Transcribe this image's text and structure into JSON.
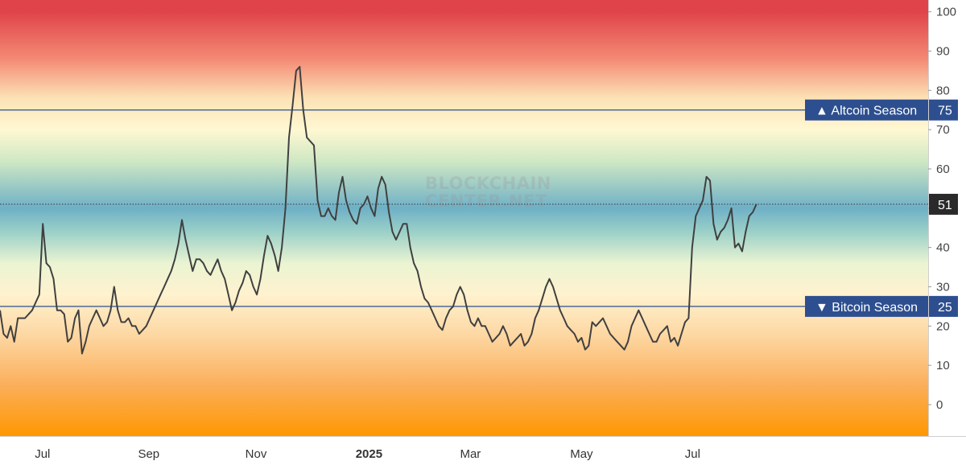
{
  "chart_data": {
    "type": "line",
    "series": [
      {
        "values": [
          24,
          18,
          17,
          20,
          16,
          22,
          22,
          22,
          23,
          24,
          26,
          28,
          46,
          36,
          35,
          32,
          24,
          24,
          23,
          16,
          17,
          22,
          24,
          13,
          16,
          20,
          22,
          24,
          22,
          20,
          21,
          24,
          30,
          24,
          21,
          21,
          22,
          20,
          20,
          18,
          19,
          20,
          22,
          24,
          26,
          28,
          30,
          32,
          34,
          37,
          41,
          47,
          42,
          38,
          34,
          37,
          37,
          36,
          34,
          33,
          35,
          37,
          34,
          32,
          28,
          24,
          26,
          29,
          31,
          34,
          33,
          30,
          28,
          32,
          38,
          43,
          41,
          38,
          34,
          40,
          50,
          68,
          76,
          85,
          86,
          75,
          68,
          67,
          66,
          52,
          48,
          48,
          50,
          48,
          47,
          54,
          58,
          52,
          49,
          47,
          46,
          50,
          51,
          53,
          50,
          48,
          55,
          58,
          56,
          49,
          44,
          42,
          44,
          46,
          46,
          40,
          36,
          34,
          30,
          27,
          26,
          24,
          22,
          20,
          19,
          22,
          24,
          25,
          28,
          30,
          28,
          24,
          21,
          20,
          22,
          20,
          20,
          18,
          16,
          17,
          18,
          20,
          18,
          15,
          16,
          17,
          18,
          15,
          16,
          18,
          22,
          24,
          27,
          30,
          32,
          30,
          27,
          24,
          22,
          20,
          19,
          18,
          16,
          17,
          14,
          15,
          21,
          20,
          21,
          22,
          20,
          18,
          17,
          16,
          15,
          14,
          16,
          20,
          22,
          24,
          22,
          20,
          18,
          16,
          16,
          18,
          19,
          20,
          16,
          17,
          15,
          18,
          21,
          22,
          40,
          48,
          50,
          52,
          58,
          57,
          46,
          42,
          44,
          45,
          47,
          50,
          40,
          41,
          39,
          44,
          48,
          49,
          51
        ],
        "color": "#404040"
      }
    ],
    "x_axis": {
      "ticks": [
        {
          "label": "Jul",
          "x": 0.044,
          "bold": false
        },
        {
          "label": "Sep",
          "x": 0.154,
          "bold": false
        },
        {
          "label": "Nov",
          "x": 0.265,
          "bold": false
        },
        {
          "label": "2025",
          "x": 0.382,
          "bold": true
        },
        {
          "label": "Mar",
          "x": 0.487,
          "bold": false
        },
        {
          "label": "May",
          "x": 0.602,
          "bold": false
        },
        {
          "label": "Jul",
          "x": 0.717,
          "bold": false
        }
      ],
      "data_end": 0.783
    },
    "y_axis": {
      "range": [
        -8,
        103
      ],
      "ticks": [
        "0",
        "10",
        "20",
        "30",
        "40",
        "50",
        "60",
        "70",
        "80",
        "90",
        "100"
      ]
    },
    "reference_lines": [
      {
        "label": "▲ Altcoin Season",
        "value": 75,
        "value_label": "75",
        "color": "#2d4f8f"
      },
      {
        "label": "▼ Bitcoin Season",
        "value": 25,
        "value_label": "25",
        "color": "#2d4f8f"
      }
    ],
    "current_value": {
      "value": 51,
      "label": "51",
      "color": "#2a2a2a"
    },
    "watermark": [
      "BLOCKCHAIN",
      "CENTER.NET"
    ],
    "background_gradient": [
      {
        "value": 100,
        "color": "#e0434a"
      },
      {
        "value": 88,
        "color": "#f38a74"
      },
      {
        "value": 78,
        "color": "#fde2b6"
      },
      {
        "value": 70,
        "color": "#fff8d2"
      },
      {
        "value": 62,
        "color": "#cfe8c4"
      },
      {
        "value": 50,
        "color": "#6fb0c6"
      },
      {
        "value": 44,
        "color": "#9bd0c8"
      },
      {
        "value": 36,
        "color": "#eaf4d2"
      },
      {
        "value": 28,
        "color": "#fff2cf"
      },
      {
        "value": 18,
        "color": "#fdd8a4"
      },
      {
        "value": 5,
        "color": "#fbaf5b"
      },
      {
        "value": -8,
        "color": "#ff9700"
      }
    ],
    "grid": false,
    "title": "",
    "xlabel": "",
    "ylabel": ""
  }
}
